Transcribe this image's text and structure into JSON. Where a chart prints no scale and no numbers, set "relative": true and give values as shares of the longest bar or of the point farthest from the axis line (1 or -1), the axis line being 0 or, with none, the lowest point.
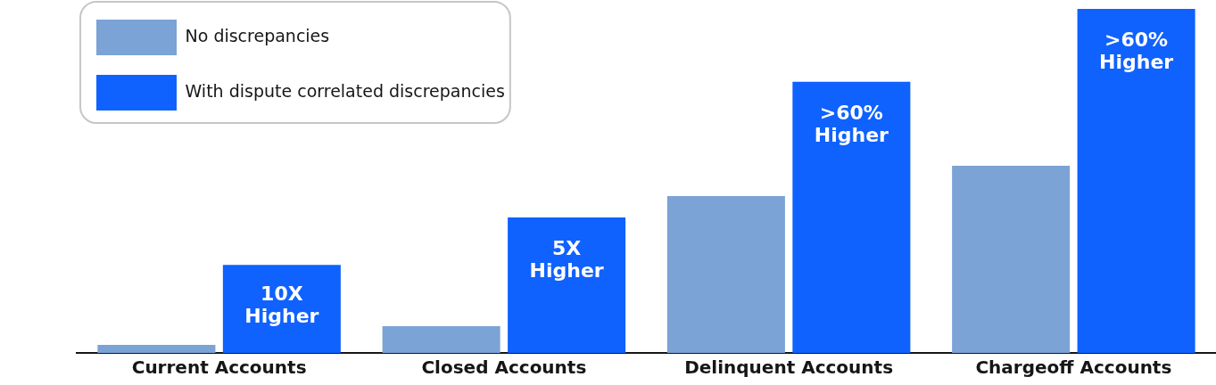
{
  "chart_data": {
    "type": "bar",
    "relative": true,
    "categories": [
      "Current Accounts",
      "Closed Accounts",
      "Delinquent Accounts",
      "Chargeoff Accounts"
    ],
    "series": [
      {
        "name": "No discrepancies",
        "color": "#7ba3d5",
        "values": [
          0.023,
          0.078,
          0.456,
          0.544
        ]
      },
      {
        "name": "With dispute correlated discrepancies",
        "color": "#0f62fe",
        "values": [
          0.256,
          0.394,
          0.788,
          1
        ]
      }
    ],
    "annotations": [
      {
        "text": "10X Higher",
        "x": "Current Accounts",
        "y": 0.256
      },
      {
        "text": "5X Higher",
        "x": "Closed Accounts",
        "y": 0.394
      },
      {
        "text": ">60% Higher",
        "x": "Delinquent Accounts",
        "y": 0.788
      },
      {
        "text": ">60% Higher",
        "x": "Chargeoff Accounts",
        "y": 1
      }
    ],
    "grid": false,
    "legend": "top left"
  }
}
